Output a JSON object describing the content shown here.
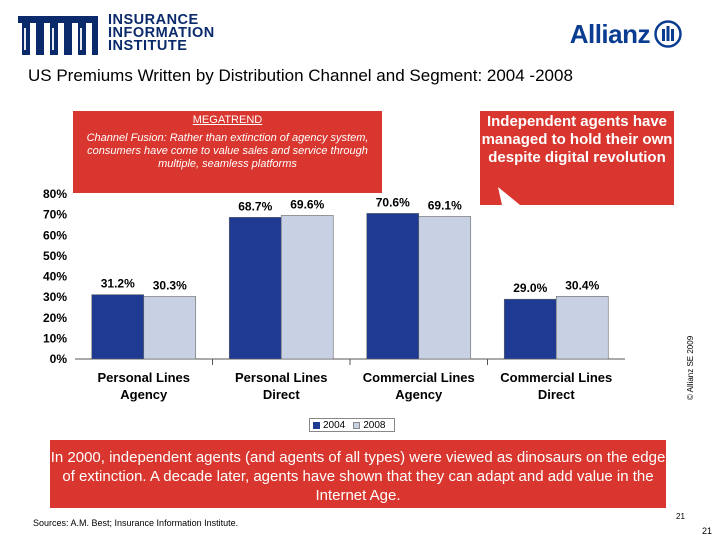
{
  "header": {
    "org_lines": [
      "INSURANCE",
      "INFORMATION",
      "INSTITUTE"
    ],
    "brand": "Allianz",
    "title": "US Premiums Written by Distribution Channel and Segment: 2004 -2008"
  },
  "megatrend": {
    "heading": "MEGATREND",
    "text": "Channel Fusion:  Rather than extinction of agency system, consumers have come to value sales and service through multiple, seamless platforms"
  },
  "callout": {
    "text": "Independent agents have managed to hold their own despite digital revolution"
  },
  "footer_box": {
    "text": "In 2000, independent agents (and agents of all types) were viewed as dinosaurs on the edge of extinction.  A decade later, agents have shown that they can adapt and add value in the Internet Age."
  },
  "sources": "Sources: A.M. Best; Insurance Information Institute.",
  "copyright": "© Allianz SE 2009",
  "page_numbers": {
    "small": "21",
    "big": "21"
  },
  "colors": {
    "series_2004": "#1f3a93",
    "series_2008": "#c8d0e4",
    "accent_red": "#d8362e",
    "brand_blue": "#0a3d91"
  },
  "chart_data": {
    "type": "bar",
    "categories": [
      [
        "Personal Lines",
        "Agency"
      ],
      [
        "Personal Lines",
        "Direct"
      ],
      [
        "Commercial Lines",
        "Agency"
      ],
      [
        "Commercial Lines",
        "Direct"
      ]
    ],
    "series": [
      {
        "name": "2004",
        "values": [
          31.2,
          68.7,
          70.6,
          29.0
        ],
        "labels": [
          "31.2%",
          "68.7%",
          "70.6%",
          "29.0%"
        ]
      },
      {
        "name": "2008",
        "values": [
          30.3,
          69.6,
          69.1,
          30.4
        ],
        "labels": [
          "30.3%",
          "69.6%",
          "69.1%",
          "30.4%"
        ]
      }
    ],
    "ylim": [
      0,
      80
    ],
    "yticks": [
      "0%",
      "10%",
      "20%",
      "30%",
      "40%",
      "50%",
      "60%",
      "70%",
      "80%"
    ],
    "legend_placement": "bottom",
    "grid": false
  }
}
